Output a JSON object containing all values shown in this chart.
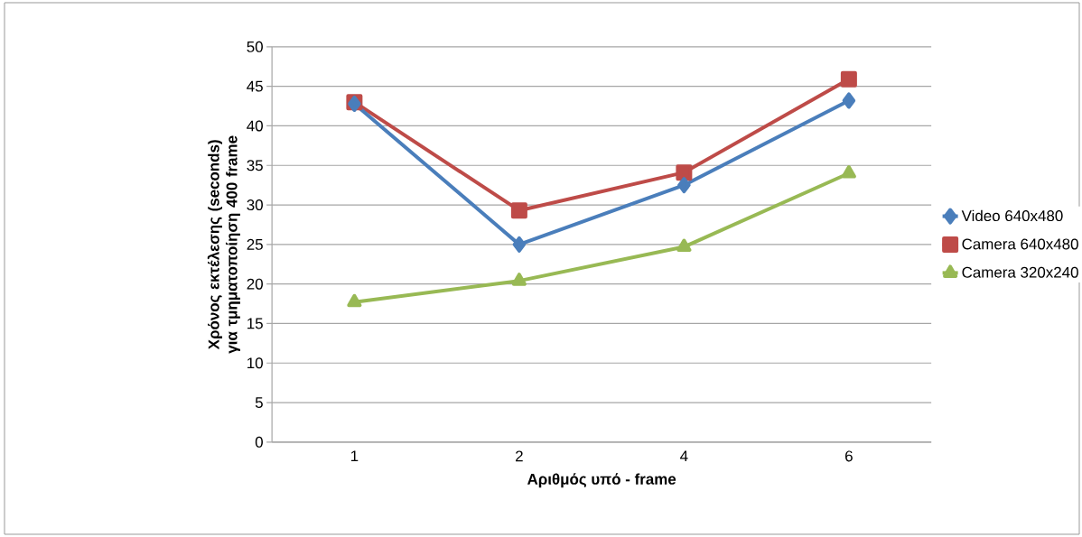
{
  "chart_data": {
    "type": "line",
    "xlabel": "Αριθμός υπό - frame",
    "ylabel": "Χρόνος εκτέλεσης (seconds) για τμηματοποίηση 400 frame",
    "categories": [
      "1",
      "2",
      "4",
      "6"
    ],
    "series": [
      {
        "name": "Video 640x480",
        "color": "#4a7ebb",
        "marker": "diamond",
        "values": [
          42.8,
          25.0,
          32.5,
          43.2
        ]
      },
      {
        "name": "Camera 640x480",
        "color": "#be4b48",
        "marker": "square",
        "values": [
          43.0,
          29.3,
          34.1,
          45.9
        ]
      },
      {
        "name": "Camera 320x240",
        "color": "#98b954",
        "marker": "triangle",
        "values": [
          17.7,
          20.4,
          24.7,
          34.0
        ]
      }
    ],
    "ylim": [
      0,
      50
    ],
    "yticks": [
      0,
      5,
      10,
      15,
      20,
      25,
      30,
      35,
      40,
      45,
      50
    ],
    "grid": "y",
    "legend": "right"
  }
}
